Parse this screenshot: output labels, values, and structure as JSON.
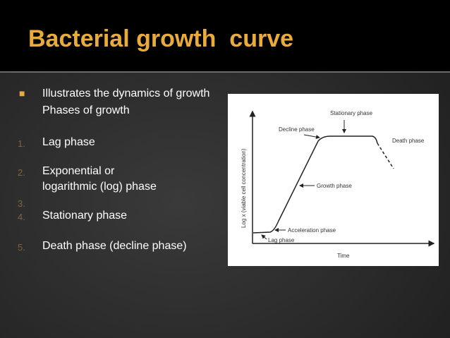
{
  "title": "Bacterial growth  curve",
  "bullet": {
    "lines": [
      "Illustrates the dynamics of growth",
      "Phases of growth"
    ]
  },
  "list": [
    {
      "marker": "1.",
      "lines": [
        "Lag phase"
      ]
    },
    {
      "marker": "2.",
      "lines": [
        "Exponential or",
        "logarithmic (log) phase"
      ]
    },
    {
      "marker": "3."
    },
    {
      "marker": "4.",
      "lines": [
        "Stationary phase"
      ]
    },
    {
      "marker": "5.",
      "lines": [
        "Death phase (decline phase)"
      ]
    }
  ],
  "diagram": {
    "y_axis_label": "Log x (viable cell concentration)",
    "x_axis_label": "Time",
    "labels": {
      "stationary": "Stationary phase",
      "decline": "Decline phase",
      "death": "Death phase",
      "growth": "Growth phase",
      "acceleration": "Acceleration phase",
      "lag": "Lag phase"
    }
  }
}
